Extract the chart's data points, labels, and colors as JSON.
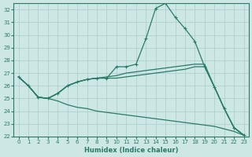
{
  "xlabel": "Humidex (Indice chaleur)",
  "bg_color": "#cde8e4",
  "grid_color": "#a8cccc",
  "line_color": "#2a7a6a",
  "xlim": [
    -0.5,
    23.5
  ],
  "ylim": [
    22,
    32.5
  ],
  "yticks": [
    22,
    23,
    24,
    25,
    26,
    27,
    28,
    29,
    30,
    31,
    32
  ],
  "xticks": [
    0,
    1,
    2,
    3,
    4,
    5,
    6,
    7,
    8,
    9,
    10,
    11,
    12,
    13,
    14,
    15,
    16,
    17,
    18,
    19,
    20,
    21,
    22,
    23
  ],
  "line1_x": [
    0,
    1,
    2,
    3,
    4,
    5,
    6,
    7,
    8,
    9,
    10,
    11,
    12,
    13,
    14,
    15,
    16,
    17,
    18,
    19,
    20,
    21,
    22,
    23
  ],
  "line1_y": [
    26.7,
    26.0,
    25.1,
    25.0,
    25.4,
    26.0,
    26.3,
    26.5,
    26.6,
    26.6,
    27.5,
    27.5,
    27.7,
    29.7,
    32.1,
    32.5,
    31.4,
    30.5,
    29.5,
    27.5,
    25.9,
    24.2,
    22.7,
    22.1
  ],
  "line2_x": [
    0,
    1,
    2,
    3,
    4,
    5,
    6,
    7,
    8,
    9,
    10,
    11,
    12,
    13,
    14,
    15,
    16,
    17,
    18,
    19,
    20,
    21,
    22,
    23
  ],
  "line2_y": [
    26.7,
    26.0,
    25.1,
    25.0,
    25.4,
    26.0,
    26.3,
    26.5,
    26.6,
    26.6,
    26.6,
    26.7,
    26.8,
    26.9,
    27.0,
    27.1,
    27.2,
    27.3,
    27.5,
    27.5,
    25.9,
    24.2,
    22.7,
    22.1
  ],
  "line3_x": [
    0,
    1,
    2,
    3,
    4,
    5,
    6,
    7,
    8,
    9,
    10,
    11,
    12,
    13,
    14,
    15,
    16,
    17,
    18,
    19,
    20,
    21,
    22,
    23
  ],
  "line3_y": [
    26.7,
    26.0,
    25.1,
    25.0,
    24.8,
    24.5,
    24.3,
    24.2,
    24.0,
    23.9,
    23.8,
    23.7,
    23.6,
    23.5,
    23.4,
    23.3,
    23.2,
    23.1,
    23.0,
    22.9,
    22.8,
    22.6,
    22.4,
    22.1
  ],
  "line4_x": [
    0,
    1,
    2,
    3,
    4,
    5,
    6,
    7,
    8,
    9,
    10,
    11,
    12,
    13,
    14,
    15,
    16,
    17,
    18,
    19,
    20,
    21,
    22,
    23
  ],
  "line4_y": [
    26.7,
    26.0,
    25.1,
    25.0,
    25.4,
    26.0,
    26.3,
    26.5,
    26.6,
    26.7,
    26.8,
    27.0,
    27.1,
    27.2,
    27.3,
    27.4,
    27.5,
    27.6,
    27.7,
    27.7,
    25.9,
    24.2,
    22.7,
    22.1
  ]
}
